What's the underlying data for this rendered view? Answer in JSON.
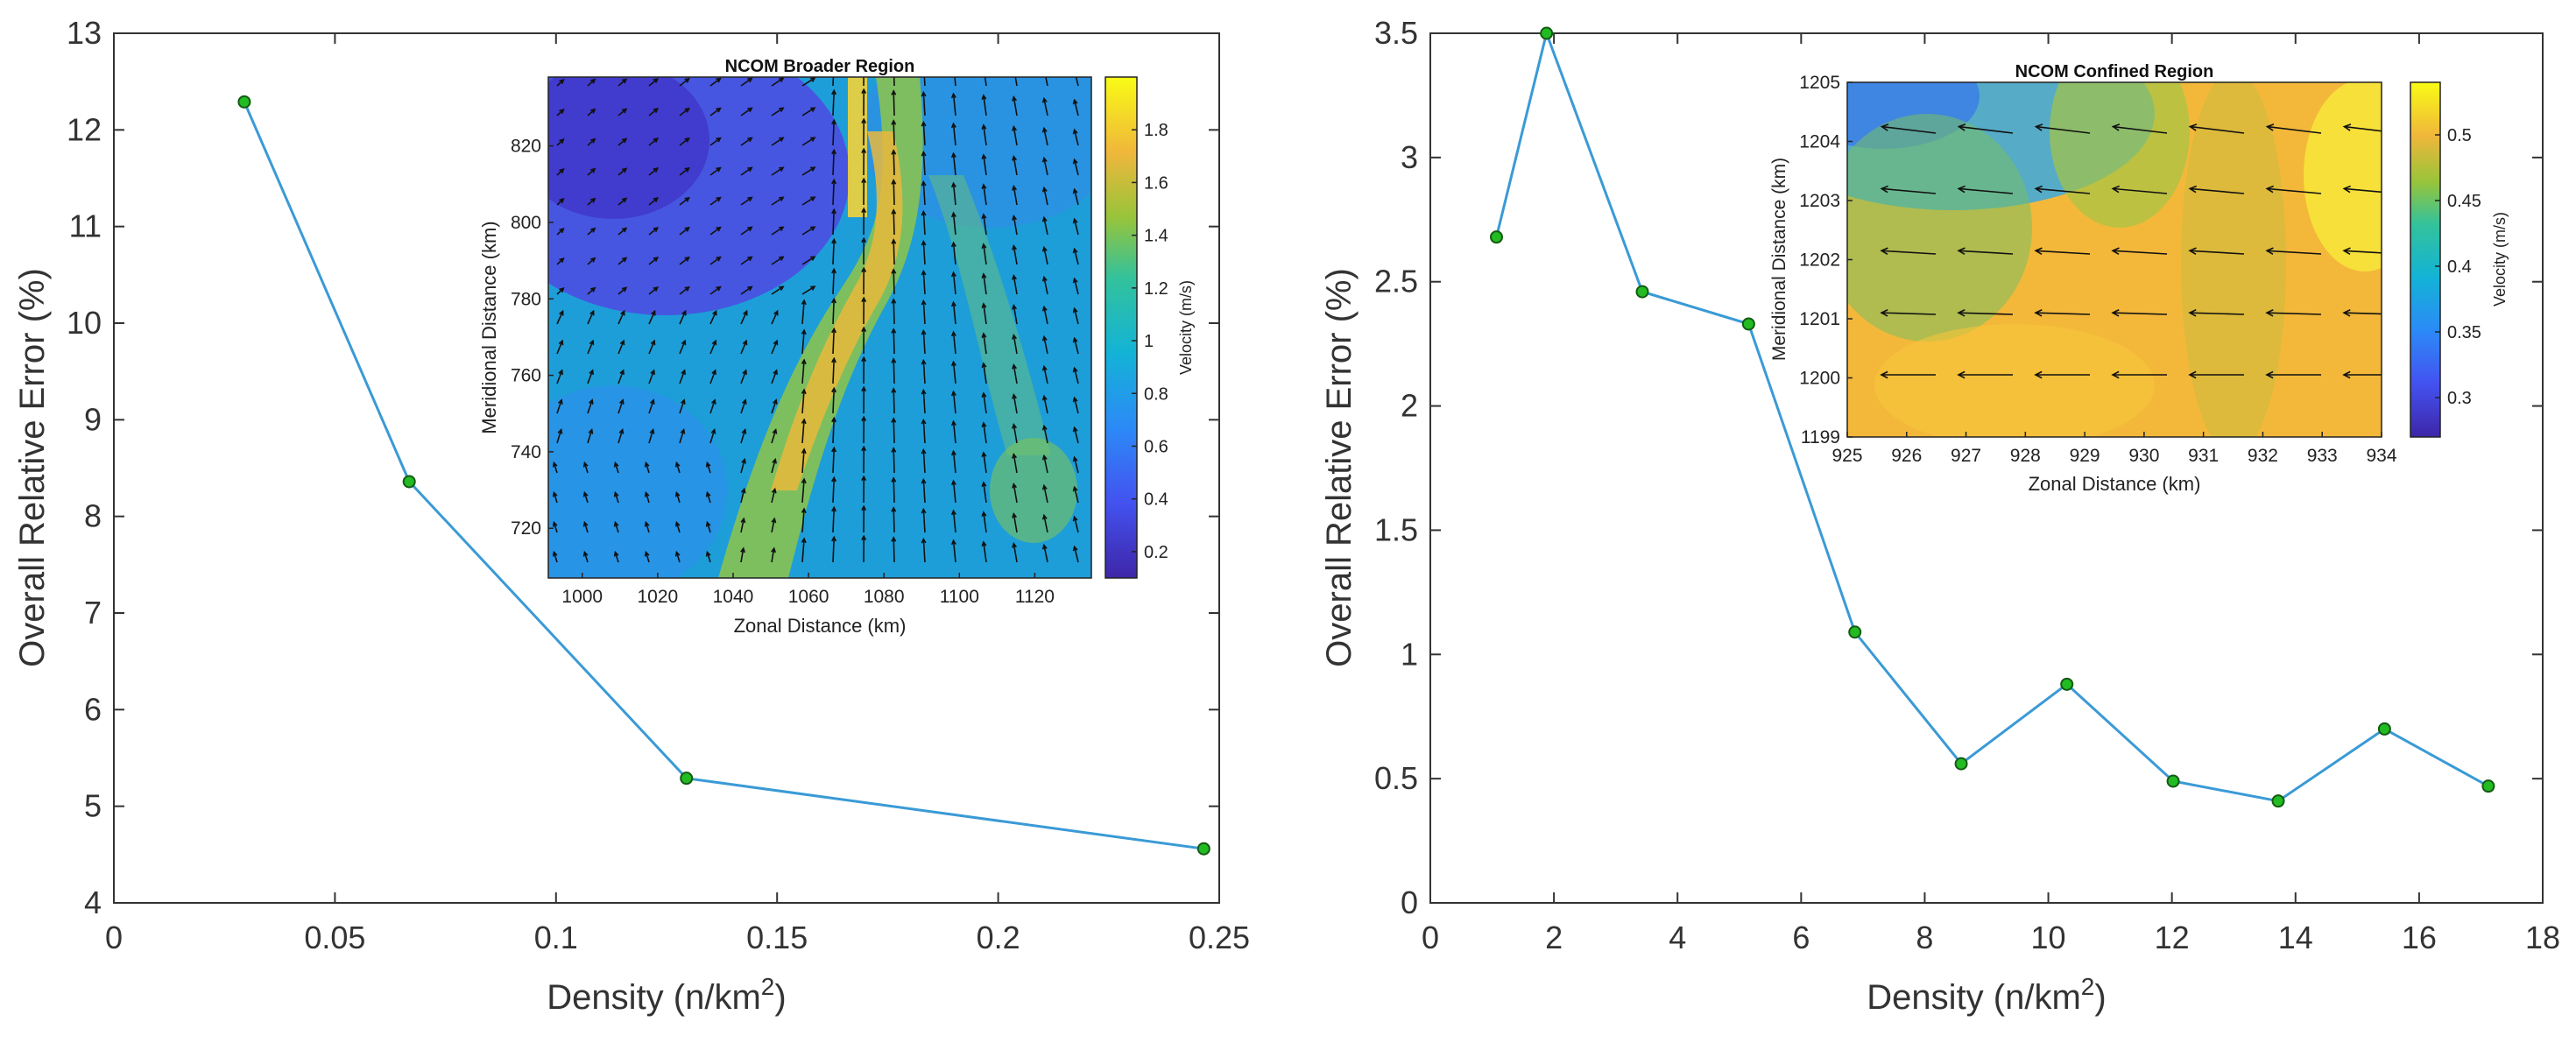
{
  "chart_data": [
    {
      "type": "line",
      "xlabel": "Density (n/km",
      "xlabel_sup": "2",
      "xlabel_close": ")",
      "ylabel": "Overall Relative Error (%)",
      "xlim": [
        0,
        0.25
      ],
      "ylim": [
        4,
        13
      ],
      "xticks": [
        "0",
        "0.05",
        "0.1",
        "0.15",
        "0.2",
        "0.25"
      ],
      "xtick_values": [
        0,
        0.05,
        0.1,
        0.15,
        0.2,
        0.25
      ],
      "yticks": [
        "4",
        "5",
        "6",
        "7",
        "8",
        "9",
        "10",
        "11",
        "12",
        "13"
      ],
      "ytick_values": [
        4,
        5,
        6,
        7,
        8,
        9,
        10,
        11,
        12,
        13
      ],
      "series": [
        {
          "name": "error",
          "x": [
            0.0295,
            0.0668,
            0.1295,
            0.2465
          ],
          "y": [
            12.29,
            8.36,
            5.29,
            4.56
          ]
        }
      ],
      "line_color": "#3a9ad6",
      "marker_color": "#22bb22",
      "inset": {
        "type": "heatmap",
        "title": "NCOM Broader Region",
        "xlabel": "Zonal Distance (km)",
        "ylabel": "Meridional Distance (km)",
        "xlim": [
          991,
          1135
        ],
        "ylim": [
          707,
          838
        ],
        "xticks": [
          "1000",
          "1020",
          "1040",
          "1060",
          "1080",
          "1100",
          "1120"
        ],
        "xtick_values": [
          1000,
          1020,
          1040,
          1060,
          1080,
          1100,
          1120
        ],
        "yticks": [
          "720",
          "740",
          "760",
          "780",
          "800",
          "820"
        ],
        "ytick_values": [
          720,
          740,
          760,
          780,
          800,
          820
        ],
        "colorbar_label": "Velocity (m/s)",
        "colorbar_range": [
          0.1,
          2.0
        ],
        "colorbar_ticks": [
          "0.2",
          "0.4",
          "0.6",
          "0.8",
          "1",
          "1.2",
          "1.4",
          "1.6",
          "1.8"
        ],
        "colorbar_tick_values": [
          0.2,
          0.4,
          0.6,
          0.8,
          1.0,
          1.2,
          1.4,
          1.6,
          1.8
        ]
      }
    },
    {
      "type": "line",
      "xlabel": "Density (n/km",
      "xlabel_sup": "2",
      "xlabel_close": ")",
      "ylabel": "Overall Relative Error (%)",
      "xlim": [
        0,
        18
      ],
      "ylim": [
        0,
        3.5
      ],
      "xticks": [
        "0",
        "2",
        "4",
        "6",
        "8",
        "10",
        "12",
        "14",
        "16",
        "18"
      ],
      "xtick_values": [
        0,
        2,
        4,
        6,
        8,
        10,
        12,
        14,
        16,
        18
      ],
      "yticks": [
        "0",
        "0.5",
        "1",
        "1.5",
        "2",
        "2.5",
        "3",
        "3.5"
      ],
      "ytick_values": [
        0,
        0.5,
        1,
        1.5,
        2,
        2.5,
        3,
        3.5
      ],
      "series": [
        {
          "name": "error",
          "x": [
            1.07,
            1.88,
            3.43,
            5.15,
            6.87,
            8.59,
            10.3,
            12.02,
            13.72,
            15.44,
            17.12
          ],
          "y": [
            2.68,
            3.5,
            2.46,
            2.33,
            1.09,
            0.56,
            0.88,
            0.49,
            0.41,
            0.7,
            0.47
          ]
        }
      ],
      "line_color": "#3a9ad6",
      "marker_color": "#22bb22",
      "inset": {
        "type": "heatmap",
        "title": "NCOM Confined Region",
        "xlabel": "Zonal Distance (km)",
        "ylabel": "Meridional Distance (km)",
        "xlim": [
          925,
          934
        ],
        "ylim": [
          1199,
          1205
        ],
        "xticks": [
          "925",
          "926",
          "927",
          "928",
          "929",
          "930",
          "931",
          "932",
          "933",
          "934"
        ],
        "xtick_values": [
          925,
          926,
          927,
          928,
          929,
          930,
          931,
          932,
          933,
          934
        ],
        "yticks": [
          "1199",
          "1200",
          "1201",
          "1202",
          "1203",
          "1204",
          "1205"
        ],
        "ytick_values": [
          1199,
          1200,
          1201,
          1202,
          1203,
          1204,
          1205
        ],
        "colorbar_label": "Velocity (m/s)",
        "colorbar_range": [
          0.27,
          0.54
        ],
        "colorbar_ticks": [
          "0.3",
          "0.35",
          "0.4",
          "0.45",
          "0.5"
        ],
        "colorbar_tick_values": [
          0.3,
          0.35,
          0.4,
          0.45,
          0.5
        ]
      }
    }
  ]
}
